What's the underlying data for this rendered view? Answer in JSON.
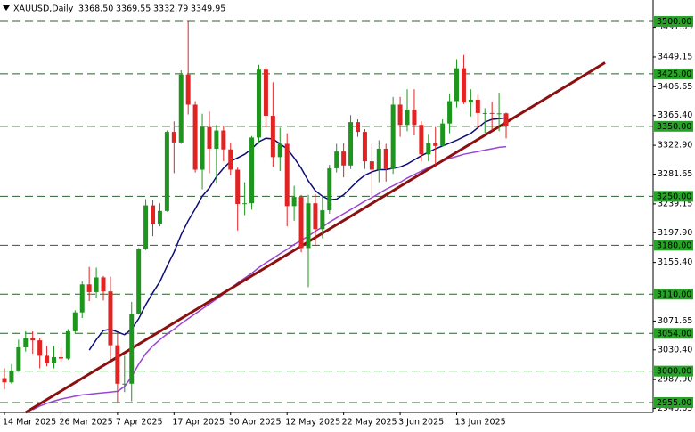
{
  "chart_data": {
    "type": "candlestick",
    "header": {
      "symbol": "XAUUSD,Daily",
      "ohlc_labels": [
        "3368.50",
        "3369.55",
        "3332.79",
        "3349.95"
      ]
    },
    "categories": [
      "14 Mar 2025",
      null,
      null,
      null,
      null,
      null,
      null,
      null,
      "26 Mar 2025",
      null,
      null,
      null,
      null,
      null,
      null,
      null,
      "7 Apr 2025",
      null,
      null,
      null,
      null,
      null,
      null,
      null,
      "17 Apr 2025",
      null,
      null,
      null,
      null,
      null,
      null,
      null,
      "30 Apr 2025",
      null,
      null,
      null,
      null,
      null,
      null,
      null,
      "12 May 2025",
      null,
      null,
      null,
      null,
      null,
      null,
      null,
      "22 May 2025",
      null,
      null,
      null,
      null,
      null,
      null,
      null,
      "3 Jun 2025",
      null,
      null,
      null,
      null,
      null,
      null,
      null,
      "13 Jun 2025",
      null,
      null,
      null,
      null,
      null,
      null,
      null
    ],
    "candles": {
      "up_color": "#1e961e",
      "down_color": "#e02424",
      "open": [
        2990,
        2984,
        3001,
        3034,
        3047,
        3044,
        3022,
        3011,
        3020,
        3018,
        3057,
        3084,
        3124,
        3113,
        3134,
        3114,
        3037,
        2982,
        2982,
        3082,
        3175,
        3237,
        3210,
        3229,
        3342,
        3327,
        3424,
        3381,
        3288,
        3349,
        3318,
        3344,
        3317,
        3288,
        3239,
        3240,
        3334,
        3431,
        3365,
        3306,
        3325,
        3236,
        3249,
        3176,
        3240,
        3203,
        3230,
        3290,
        3314,
        3294,
        3356,
        3342,
        3300,
        3288,
        3318,
        3289,
        3381,
        3352,
        3374,
        3352,
        3310,
        3326,
        3322,
        3354,
        3386,
        3433,
        3384,
        3388,
        3369,
        3369,
        3368,
        3368.5
      ],
      "high": [
        3004,
        3010,
        3045,
        3057,
        3057,
        3048,
        3036,
        3036,
        3033,
        3060,
        3087,
        3128,
        3149,
        3148,
        3136,
        3135,
        3055,
        3022,
        3099,
        3176,
        3246,
        3245,
        3240,
        3344,
        3357,
        3430,
        3500,
        3386,
        3368,
        3371,
        3352,
        3350,
        3327,
        3291,
        3270,
        3336,
        3438,
        3435,
        3413,
        3348,
        3340,
        3265,
        3252,
        3252,
        3253,
        3250,
        3295,
        3325,
        3326,
        3366,
        3360,
        3346,
        3325,
        3330,
        3325,
        3392,
        3392,
        3403,
        3403,
        3357,
        3338,
        3349,
        3360,
        3397,
        3446,
        3452,
        3403,
        3395,
        3376,
        3385,
        3398,
        3369.55
      ],
      "low": [
        2974,
        2982,
        2999,
        3028,
        3025,
        3004,
        3007,
        3004,
        3014,
        3016,
        3054,
        3076,
        3100,
        3105,
        3101,
        3016,
        2956,
        2970,
        2957,
        3081,
        3173,
        3193,
        3207,
        3228,
        3283,
        3325,
        3367,
        3284,
        3260,
        3283,
        3268,
        3300,
        3280,
        3201,
        3223,
        3231,
        3325,
        3349,
        3292,
        3286,
        3207,
        3215,
        3170,
        3120,
        3179,
        3190,
        3225,
        3284,
        3277,
        3289,
        3335,
        3289,
        3245,
        3270,
        3271,
        3282,
        3335,
        3343,
        3337,
        3300,
        3300,
        3293,
        3321,
        3340,
        3377,
        3382,
        3364,
        3347,
        3340,
        3344,
        3343,
        3332.79
      ],
      "close": [
        2984,
        3001,
        3034,
        3047,
        3044,
        3022,
        3011,
        3020,
        3018,
        3057,
        3084,
        3124,
        3113,
        3134,
        3114,
        3037,
        2982,
        2982,
        3082,
        3175,
        3237,
        3210,
        3229,
        3342,
        3327,
        3424,
        3381,
        3288,
        3349,
        3318,
        3344,
        3317,
        3288,
        3239,
        3240,
        3334,
        3431,
        3365,
        3306,
        3325,
        3236,
        3249,
        3176,
        3240,
        3203,
        3230,
        3290,
        3314,
        3294,
        3356,
        3342,
        3300,
        3288,
        3318,
        3289,
        3381,
        3352,
        3374,
        3352,
        3310,
        3326,
        3322,
        3354,
        3386,
        3433,
        3384,
        3388,
        3369,
        3369,
        3368,
        3368.5,
        3349.95
      ]
    },
    "lines": [
      {
        "color": "#0c0c7a",
        "values": [
          null,
          null,
          null,
          null,
          null,
          null,
          null,
          null,
          null,
          null,
          null,
          null,
          3030,
          3045,
          3058,
          3060,
          3056,
          3052,
          3060,
          3075,
          3095,
          3112,
          3128,
          3150,
          3170,
          3195,
          3215,
          3232,
          3250,
          3262,
          3278,
          3290,
          3300,
          3305,
          3310,
          3318,
          3328,
          3333,
          3332,
          3325,
          3318,
          3305,
          3290,
          3272,
          3258,
          3250,
          3245,
          3246,
          3252,
          3262,
          3272,
          3280,
          3285,
          3288,
          3288,
          3290,
          3292,
          3296,
          3302,
          3308,
          3313,
          3318,
          3322,
          3326,
          3330,
          3335,
          3340,
          3348,
          3356,
          3360,
          3361,
          3362
        ]
      },
      {
        "color": "#9b45d6",
        "values": [
          null,
          null,
          null,
          null,
          2945,
          2950,
          2954,
          2957,
          2960,
          2962,
          2964,
          2966,
          2967,
          2968,
          2969,
          2970,
          2971,
          2978,
          2992,
          3010,
          3025,
          3036,
          3045,
          3053,
          3060,
          3068,
          3075,
          3082,
          3089,
          3096,
          3103,
          3110,
          3118,
          3126,
          3133,
          3140,
          3148,
          3155,
          3161,
          3168,
          3174,
          3181,
          3187,
          3193,
          3200,
          3206,
          3213,
          3219,
          3225,
          3231,
          3237,
          3243,
          3248,
          3254,
          3260,
          3265,
          3270,
          3276,
          3281,
          3286,
          3291,
          3296,
          3301,
          3304,
          3307,
          3310,
          3312,
          3314,
          3316,
          3318,
          3320,
          3321
        ]
      }
    ],
    "trendline": {
      "color": "#8b1010",
      "x": [
        3,
        85
      ],
      "y": [
        2941,
        3441
      ]
    },
    "levels": {
      "color": "#2f5e2f",
      "box_color": "#27a327",
      "values": [
        {
          "value": 3500,
          "label": "3500.00"
        },
        {
          "value": 3425,
          "label": "3425.00"
        },
        {
          "value": 3350,
          "label": "3350.00"
        },
        {
          "value": 3250,
          "label": "3250.00"
        },
        {
          "value": 3180,
          "label": "3180.00"
        },
        {
          "value": 3110,
          "label": "3110.00"
        },
        {
          "value": 3054,
          "label": "3054.00"
        },
        {
          "value": 3000,
          "label": "3000.00"
        },
        {
          "value": 2955,
          "label": "2955.00"
        }
      ]
    },
    "ylim": [
      2941,
      3530.6
    ],
    "yticks": [
      3491.65,
      3449.15,
      3406.65,
      {
        "value": 3365.4,
        "label": "3365.40"
      },
      {
        "value": 3322.9,
        "label": "3322.90"
      },
      3281.65,
      3239.15,
      {
        "value": 3197.9,
        "label": "3197.90"
      },
      {
        "value": 3155.4,
        "label": "3155.40"
      },
      3071.65,
      {
        "value": 3030.4,
        "label": "3030.40"
      },
      {
        "value": 2987.9,
        "label": "2987.90"
      },
      2946.65
    ]
  }
}
